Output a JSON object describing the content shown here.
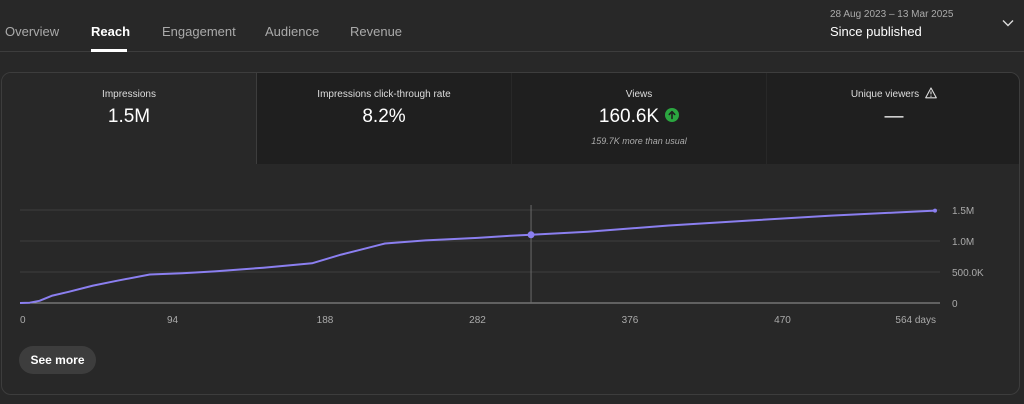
{
  "tabs": [
    {
      "label": "Overview",
      "active": false
    },
    {
      "label": "Reach",
      "active": true
    },
    {
      "label": "Engagement",
      "active": false
    },
    {
      "label": "Audience",
      "active": false
    },
    {
      "label": "Revenue",
      "active": false
    }
  ],
  "date_picker": {
    "range": "28 Aug 2023 – 13 Mar 2025",
    "label": "Since published",
    "icon": "chevron-down-icon"
  },
  "metrics": [
    {
      "label": "Impressions",
      "value": "1.5M",
      "note": ""
    },
    {
      "label": "Impressions click-through rate",
      "value": "8.2%",
      "note": ""
    },
    {
      "label": "Views",
      "value": "160.6K",
      "note": "159.7K more than usual",
      "trend_icon": "arrow-up-circle-icon",
      "trend_color": "#2ba640"
    },
    {
      "label": "Unique viewers",
      "value": "—",
      "note": "",
      "info_icon": "warning-icon"
    }
  ],
  "colors": {
    "accent_line": "#8b7ff0",
    "background": "#282828",
    "metric_tile": "#1f1f1f"
  },
  "chart_data": {
    "type": "line",
    "title": "",
    "xlabel": "",
    "ylabel": "",
    "x_ticks": [
      "0",
      "94",
      "188",
      "282",
      "376",
      "470",
      "564 days"
    ],
    "y_ticks": [
      "0",
      "500.0K",
      "1.0M",
      "1.5M"
    ],
    "x_range": [
      0,
      564
    ],
    "y_range": [
      0,
      1500000
    ],
    "grid": true,
    "hover_x": 315,
    "series": [
      {
        "name": "",
        "x": [
          0,
          6,
          12,
          20,
          30,
          45,
          60,
          80,
          100,
          120,
          150,
          180,
          198,
          210,
          225,
          250,
          282,
          300,
          315,
          350,
          400,
          450,
          500,
          540,
          564
        ],
        "y": [
          0,
          5000,
          35000,
          120000,
          180000,
          280000,
          360000,
          460000,
          480000,
          510000,
          570000,
          640000,
          780000,
          860000,
          960000,
          1010000,
          1050000,
          1080000,
          1100000,
          1150000,
          1250000,
          1330000,
          1410000,
          1460000,
          1490000
        ]
      }
    ]
  },
  "see_more_label": "See more"
}
